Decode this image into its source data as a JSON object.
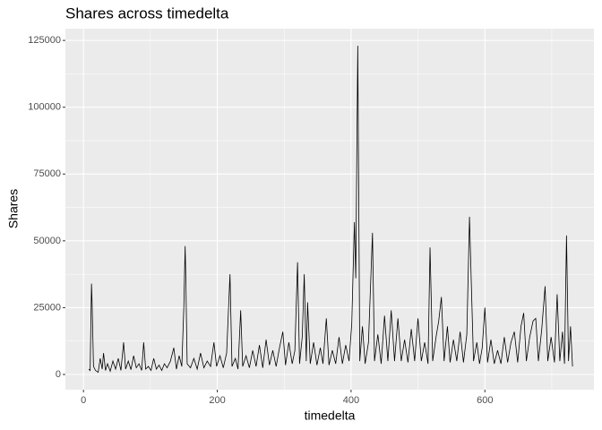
{
  "chart_data": {
    "type": "line",
    "title": "Shares across timedelta",
    "x_label": "timedelta",
    "y_label": "Shares",
    "x": [
      8,
      10,
      12,
      13,
      15,
      18,
      22,
      25,
      28,
      30,
      33,
      36,
      40,
      44,
      48,
      52,
      56,
      60,
      63,
      67,
      71,
      75,
      79,
      83,
      87,
      90,
      93,
      97,
      101,
      105,
      109,
      113,
      117,
      121,
      125,
      130,
      135,
      139,
      143,
      147,
      150,
      152,
      153,
      155,
      160,
      165,
      170,
      175,
      180,
      185,
      190,
      195,
      199,
      204,
      209,
      214,
      219,
      222,
      227,
      231,
      235,
      238,
      243,
      248,
      253,
      258,
      263,
      268,
      273,
      278,
      283,
      288,
      293,
      298,
      302,
      307,
      312,
      316,
      320,
      323,
      327,
      330,
      333,
      335,
      339,
      344,
      349,
      354,
      358,
      363,
      367,
      372,
      377,
      382,
      387,
      392,
      397,
      401,
      405,
      407,
      410,
      413,
      417,
      421,
      426,
      432,
      435,
      440,
      445,
      450,
      455,
      460,
      465,
      470,
      475,
      480,
      485,
      490,
      495,
      500,
      505,
      510,
      515,
      518,
      522,
      527,
      531,
      535,
      539,
      544,
      548,
      553,
      558,
      563,
      568,
      573,
      577,
      580,
      583,
      588,
      592,
      596,
      600,
      604,
      609,
      614,
      619,
      624,
      629,
      634,
      639,
      644,
      649,
      654,
      658,
      662,
      667,
      672,
      676,
      680,
      685,
      690,
      694,
      699,
      704,
      708,
      712,
      716,
      719,
      722,
      725,
      728,
      731
    ],
    "series": [
      {
        "color": "#000000",
        "values": [
          2000,
          1500,
          34000,
          26000,
          3000,
          1500,
          800,
          6000,
          2000,
          8000,
          1500,
          4000,
          1200,
          5000,
          2000,
          6000,
          1500,
          12000,
          2000,
          5000,
          1800,
          7000,
          2500,
          4000,
          1500,
          12000,
          2000,
          3000,
          1500,
          6000,
          2000,
          3500,
          1500,
          4000,
          2500,
          5000,
          10000,
          2000,
          7000,
          3000,
          25000,
          48000,
          36000,
          4000,
          2500,
          6000,
          2000,
          8000,
          2500,
          5000,
          3000,
          12000,
          3000,
          7000,
          2500,
          8000,
          37500,
          3000,
          6000,
          2000,
          24000,
          3000,
          7000,
          2500,
          9000,
          3000,
          11000,
          2500,
          13000,
          3500,
          9000,
          3000,
          10000,
          16000,
          3500,
          12000,
          4000,
          9000,
          42000,
          4000,
          14000,
          37500,
          5000,
          27000,
          4000,
          12000,
          3500,
          10000,
          4000,
          21000,
          3500,
          9000,
          4000,
          14000,
          4000,
          11000,
          5000,
          19000,
          57000,
          36000,
          123000,
          5000,
          18000,
          4000,
          12000,
          53000,
          5000,
          15000,
          4000,
          22000,
          5000,
          24000,
          5000,
          21000,
          5000,
          13000,
          4500,
          17000,
          5000,
          21000,
          5000,
          12000,
          4000,
          47500,
          5000,
          14000,
          20000,
          29000,
          5000,
          18000,
          4500,
          13000,
          5000,
          16000,
          4500,
          15000,
          59000,
          31500,
          5000,
          12000,
          4000,
          10000,
          25000,
          4500,
          13000,
          4000,
          9000,
          4000,
          14000,
          4500,
          12000,
          16000,
          4500,
          18000,
          23000,
          5000,
          14000,
          20000,
          21000,
          5000,
          17000,
          33000,
          5000,
          14000,
          4500,
          30000,
          5000,
          16000,
          4000,
          52000,
          5000,
          18000,
          3000
        ]
      }
    ],
    "xlim": [
      -27,
      763
    ],
    "xticks": [
      0,
      200,
      400,
      600
    ],
    "ylim": [
      -5700,
      129400
    ],
    "yticks": [
      0,
      25000,
      50000,
      75000,
      100000,
      125000
    ],
    "grid": true
  }
}
